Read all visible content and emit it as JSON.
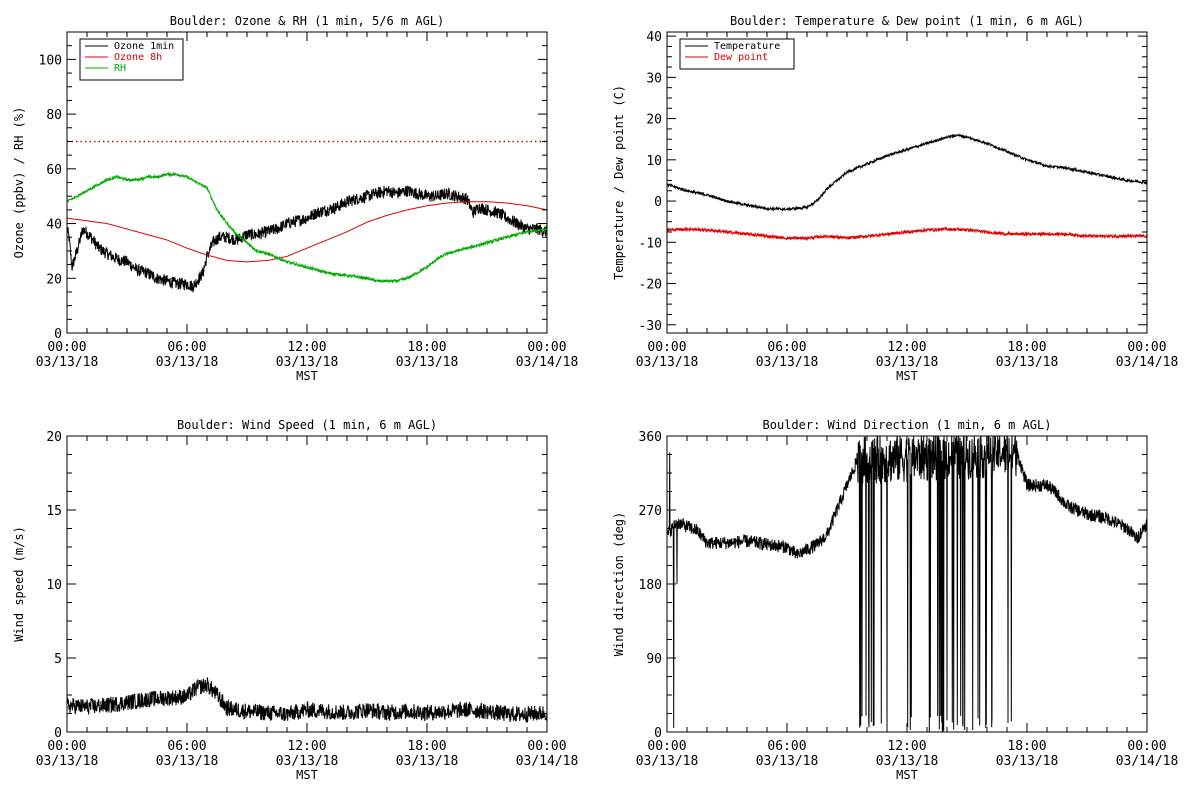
{
  "chart_data": [
    {
      "type": "line",
      "title": "Boulder: Ozone & RH (1 min, 5/6 m AGL)",
      "xlabel": "MST",
      "ylabel": "Ozone (ppbv) / RH (%)",
      "xlim_hours": [
        0,
        24
      ],
      "ylim": [
        0,
        110
      ],
      "yticks": [
        0,
        20,
        40,
        60,
        80,
        100
      ],
      "xticks": [
        {
          "h": 0,
          "time": "00:00",
          "date": "03/13/18"
        },
        {
          "h": 6,
          "time": "06:00",
          "date": "03/13/18"
        },
        {
          "h": 12,
          "time": "12:00",
          "date": "03/13/18"
        },
        {
          "h": 18,
          "time": "18:00",
          "date": "03/13/18"
        },
        {
          "h": 24,
          "time": "00:00",
          "date": "03/14/18"
        }
      ],
      "legend_position": "top-left",
      "reference_line": {
        "y": 70,
        "color": "#dd0000",
        "style": "dotted"
      },
      "series": [
        {
          "name": "Ozone 1min",
          "color": "#000000",
          "noise": 2.2,
          "x": [
            0,
            0.1,
            0.25,
            0.5,
            0.8,
            1.2,
            1.6,
            2.0,
            2.5,
            3.0,
            3.5,
            4.0,
            4.5,
            5.0,
            5.5,
            6.0,
            6.3,
            6.6,
            6.8,
            7.0,
            7.3,
            7.6,
            8,
            8.5,
            9,
            9.5,
            10,
            10.5,
            11,
            11.5,
            12,
            12.5,
            13,
            13.5,
            14,
            14.5,
            15,
            15.5,
            16,
            16.5,
            17,
            17.5,
            18,
            18.5,
            19,
            19.5,
            20,
            20.3,
            20.6,
            21,
            21.5,
            22,
            22.5,
            23,
            23.5,
            24
          ],
          "y": [
            38,
            35,
            24,
            30,
            38,
            35,
            31,
            29,
            27,
            26,
            23,
            22,
            20,
            19,
            18,
            18,
            17,
            20,
            22,
            28,
            33,
            35,
            35,
            34,
            36,
            36,
            37,
            38,
            40,
            41,
            42,
            44,
            45,
            46,
            48,
            49,
            50,
            51,
            52,
            51,
            52,
            51,
            50,
            50,
            51,
            50,
            49,
            44,
            46,
            45,
            44,
            42,
            40,
            38,
            38,
            37
          ]
        },
        {
          "name": "Ozone 8h",
          "color": "#dd0000",
          "noise": 0,
          "x": [
            0,
            1,
            2,
            3,
            4,
            5,
            6,
            7,
            8,
            9,
            10,
            11,
            12,
            13,
            14,
            15,
            16,
            17,
            18,
            19,
            20,
            21,
            22,
            23,
            24
          ],
          "y": [
            42,
            41,
            40,
            38,
            36,
            34,
            31,
            28.5,
            26.5,
            26,
            26.5,
            28,
            31,
            34,
            37,
            40.5,
            43,
            45,
            46.5,
            47.5,
            48,
            48,
            47.5,
            46.5,
            45
          ]
        },
        {
          "name": "RH",
          "color": "#00aa00",
          "noise": 0.5,
          "x": [
            0,
            0.5,
            1,
            1.5,
            2,
            2.5,
            3,
            3.5,
            4,
            4.5,
            5,
            5.5,
            6,
            6.5,
            7,
            7.5,
            8,
            8.5,
            9,
            9.5,
            10,
            11,
            12,
            13,
            14,
            15,
            15.5,
            16,
            16.5,
            17,
            17.5,
            18,
            18.5,
            19,
            20,
            21,
            22,
            23,
            24
          ],
          "y": [
            48,
            50,
            52,
            54,
            56,
            57,
            56,
            56,
            57,
            57,
            58,
            58,
            57,
            55,
            53,
            45,
            40,
            36,
            33,
            30,
            29,
            26,
            24,
            22,
            21,
            20,
            19,
            19,
            19,
            20,
            22,
            24,
            27,
            29,
            31,
            33,
            35,
            37,
            38
          ]
        }
      ]
    },
    {
      "type": "line",
      "title": "Boulder: Temperature & Dew point (1 min, 6 m AGL)",
      "xlabel": "MST",
      "ylabel": "Temperature / Dew point (C)",
      "xlim_hours": [
        0,
        24
      ],
      "ylim": [
        -32,
        41
      ],
      "yticks": [
        -30,
        -20,
        -10,
        0,
        10,
        20,
        30,
        40
      ],
      "xticks": [
        {
          "h": 0,
          "time": "00:00",
          "date": "03/13/18"
        },
        {
          "h": 6,
          "time": "06:00",
          "date": "03/13/18"
        },
        {
          "h": 12,
          "time": "12:00",
          "date": "03/13/18"
        },
        {
          "h": 18,
          "time": "18:00",
          "date": "03/13/18"
        },
        {
          "h": 24,
          "time": "00:00",
          "date": "03/14/18"
        }
      ],
      "legend_position": "top-left",
      "series": [
        {
          "name": "Temperature",
          "color": "#000000",
          "noise": 0.3,
          "x": [
            0,
            1,
            2,
            3,
            4,
            5,
            6,
            7,
            7.5,
            8,
            8.5,
            9,
            10,
            11,
            12,
            13,
            14,
            14.5,
            15,
            16,
            17,
            18,
            19,
            20,
            21,
            22,
            23,
            24
          ],
          "y": [
            4,
            2.5,
            1.5,
            0,
            -1,
            -1.8,
            -2,
            -1.5,
            0,
            3,
            5,
            7,
            9,
            11,
            12.5,
            14,
            15.5,
            16,
            15.5,
            14,
            12,
            10,
            8.5,
            8,
            7,
            6,
            5,
            4.5
          ]
        },
        {
          "name": "Dew point",
          "color": "#dd0000",
          "noise": 0.35,
          "x": [
            0,
            1,
            2,
            3,
            4,
            5,
            6,
            7,
            8,
            9,
            10,
            11,
            12,
            13,
            14,
            15,
            16,
            17,
            18,
            19,
            20,
            21,
            22,
            23,
            24
          ],
          "y": [
            -7,
            -6.8,
            -7,
            -7.5,
            -8,
            -8.5,
            -9,
            -9,
            -8.5,
            -9,
            -8.5,
            -8,
            -7.5,
            -7,
            -6.8,
            -7,
            -7.5,
            -8,
            -8,
            -8,
            -8,
            -8.5,
            -8.5,
            -8.5,
            -8.5
          ]
        }
      ]
    },
    {
      "type": "line",
      "title": "Boulder: Wind Speed (1 min, 6 m AGL)",
      "xlabel": "MST",
      "ylabel": "Wind speed (m/s)",
      "xlim_hours": [
        0,
        24
      ],
      "ylim": [
        0,
        20
      ],
      "yticks": [
        0,
        5,
        10,
        15,
        20
      ],
      "xticks": [
        {
          "h": 0,
          "time": "00:00",
          "date": "03/13/18"
        },
        {
          "h": 6,
          "time": "06:00",
          "date": "03/13/18"
        },
        {
          "h": 12,
          "time": "12:00",
          "date": "03/13/18"
        },
        {
          "h": 18,
          "time": "18:00",
          "date": "03/13/18"
        },
        {
          "h": 24,
          "time": "00:00",
          "date": "03/14/18"
        }
      ],
      "series": [
        {
          "color": "#000000",
          "noise": 0.55,
          "x": [
            0,
            1,
            2,
            3,
            4,
            5,
            6,
            6.5,
            7,
            7.5,
            8,
            9,
            10,
            11,
            12,
            13,
            14,
            15,
            16,
            17,
            18,
            19,
            20,
            21,
            22,
            23,
            24
          ],
          "y": [
            1.8,
            1.7,
            1.8,
            2.0,
            2.2,
            2.3,
            2.4,
            3.0,
            3.2,
            2.5,
            1.6,
            1.4,
            1.3,
            1.2,
            1.5,
            1.4,
            1.3,
            1.5,
            1.3,
            1.4,
            1.3,
            1.4,
            1.5,
            1.4,
            1.2,
            1.2,
            1.3
          ]
        }
      ]
    },
    {
      "type": "line",
      "title": "Boulder: Wind Direction (1 min, 6 m AGL)",
      "xlabel": "MST",
      "ylabel": "Wind direction (deg)",
      "xlim_hours": [
        0,
        24
      ],
      "ylim": [
        0,
        360
      ],
      "yticks": [
        0,
        90,
        180,
        270,
        360
      ],
      "xticks": [
        {
          "h": 0,
          "time": "00:00",
          "date": "03/13/18"
        },
        {
          "h": 6,
          "time": "06:00",
          "date": "03/13/18"
        },
        {
          "h": 12,
          "time": "12:00",
          "date": "03/13/18"
        },
        {
          "h": 18,
          "time": "18:00",
          "date": "03/13/18"
        },
        {
          "h": 24,
          "time": "00:00",
          "date": "03/14/18"
        }
      ],
      "series": [
        {
          "color": "#000000",
          "noise": 8,
          "variable_period": [
            9.5,
            17.5
          ],
          "x": [
            0,
            0.5,
            1,
            1.5,
            2,
            3,
            4,
            5,
            6,
            6.5,
            7,
            7.5,
            8,
            8.5,
            9,
            9.5,
            17.5,
            18,
            19,
            19.5,
            20,
            21,
            22,
            23,
            23.5,
            24
          ],
          "y": [
            240,
            255,
            250,
            245,
            230,
            230,
            232,
            228,
            225,
            215,
            222,
            228,
            240,
            270,
            300,
            330,
            340,
            300,
            300,
            290,
            275,
            265,
            260,
            248,
            235,
            255
          ]
        }
      ]
    }
  ]
}
